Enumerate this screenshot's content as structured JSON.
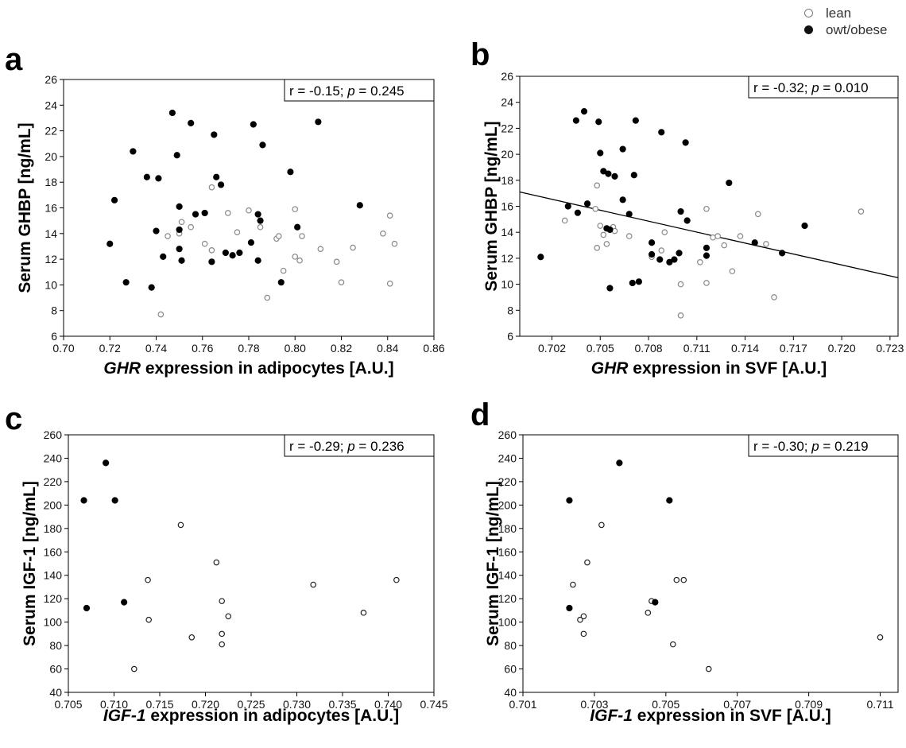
{
  "legend": {
    "lean_label": "lean",
    "obese_label": "owt/obese"
  },
  "colors": {
    "lean": "#888888",
    "lean_dark": "#222222",
    "obese": "#000000"
  },
  "chart_data": [
    {
      "type": "scatter",
      "panel": "a",
      "xlabel_italic": "GHR",
      "xlabel": " expression in adipocytes [A.U.]",
      "ylabel": "Serum GHBP [ng/mL]",
      "xlim": [
        0.7,
        0.86
      ],
      "ylim": [
        6,
        26
      ],
      "xticks": [
        "0.70",
        "0.72",
        "0.74",
        "0.76",
        "0.78",
        "0.80",
        "0.82",
        "0.84",
        "0.86"
      ],
      "yticks": [
        "6",
        "8",
        "10",
        "12",
        "14",
        "16",
        "18",
        "20",
        "22",
        "24",
        "26"
      ],
      "annotation": {
        "prefix": "r = -0.15; ",
        "p_label": "p",
        "suffix": " = 0.245"
      },
      "series": [
        {
          "name": "lean",
          "marker": "open",
          "color": "#888888",
          "points": [
            [
              0.742,
              7.7
            ],
            [
              0.745,
              13.8
            ],
            [
              0.751,
              14.9
            ],
            [
              0.75,
              14.0
            ],
            [
              0.755,
              14.5
            ],
            [
              0.761,
              13.2
            ],
            [
              0.764,
              12.7
            ],
            [
              0.764,
              17.6
            ],
            [
              0.771,
              15.6
            ],
            [
              0.775,
              14.1
            ],
            [
              0.78,
              15.8
            ],
            [
              0.785,
              14.5
            ],
            [
              0.788,
              9.0
            ],
            [
              0.792,
              13.6
            ],
            [
              0.793,
              13.8
            ],
            [
              0.795,
              11.1
            ],
            [
              0.8,
              15.9
            ],
            [
              0.8,
              12.2
            ],
            [
              0.802,
              11.9
            ],
            [
              0.803,
              13.8
            ],
            [
              0.811,
              12.8
            ],
            [
              0.818,
              11.8
            ],
            [
              0.82,
              10.2
            ],
            [
              0.825,
              12.9
            ],
            [
              0.838,
              14.0
            ],
            [
              0.841,
              15.4
            ],
            [
              0.841,
              10.1
            ],
            [
              0.843,
              13.2
            ]
          ]
        },
        {
          "name": "owt/obese",
          "marker": "filled",
          "color": "#000000",
          "points": [
            [
              0.72,
              13.2
            ],
            [
              0.722,
              16.6
            ],
            [
              0.727,
              10.2
            ],
            [
              0.73,
              20.4
            ],
            [
              0.736,
              18.4
            ],
            [
              0.738,
              9.8
            ],
            [
              0.74,
              14.2
            ],
            [
              0.741,
              18.3
            ],
            [
              0.743,
              12.2
            ],
            [
              0.747,
              23.4
            ],
            [
              0.749,
              20.1
            ],
            [
              0.75,
              16.1
            ],
            [
              0.75,
              14.3
            ],
            [
              0.75,
              12.8
            ],
            [
              0.751,
              11.9
            ],
            [
              0.755,
              22.6
            ],
            [
              0.757,
              15.5
            ],
            [
              0.761,
              15.6
            ],
            [
              0.764,
              11.8
            ],
            [
              0.765,
              21.7
            ],
            [
              0.766,
              18.4
            ],
            [
              0.768,
              17.8
            ],
            [
              0.77,
              12.5
            ],
            [
              0.773,
              12.3
            ],
            [
              0.776,
              12.5
            ],
            [
              0.781,
              13.3
            ],
            [
              0.782,
              22.5
            ],
            [
              0.784,
              11.9
            ],
            [
              0.784,
              15.5
            ],
            [
              0.785,
              15.0
            ],
            [
              0.786,
              20.9
            ],
            [
              0.794,
              10.2
            ],
            [
              0.798,
              18.8
            ],
            [
              0.801,
              14.5
            ],
            [
              0.81,
              22.7
            ],
            [
              0.828,
              16.2
            ]
          ]
        }
      ]
    },
    {
      "type": "scatter",
      "panel": "b",
      "xlabel_italic": "GHR",
      "xlabel": " expression in SVF [A.U.]",
      "ylabel": "Serum GHBP [ng/mL]",
      "xlim": [
        0.7,
        0.7235
      ],
      "ylim": [
        6,
        26
      ],
      "xticks": [
        "0.702",
        "0.705",
        "0.708",
        "0.711",
        "0.714",
        "0.717",
        "0.720",
        "0.723"
      ],
      "xtick_values": [
        0.702,
        0.705,
        0.708,
        0.711,
        0.714,
        0.717,
        0.72,
        0.723
      ],
      "yticks": [
        "6",
        "8",
        "10",
        "12",
        "14",
        "16",
        "18",
        "20",
        "22",
        "24",
        "26"
      ],
      "annotation": {
        "prefix": "r = -0.32; ",
        "p_label": "p",
        "suffix": " = 0.010"
      },
      "regression": {
        "x": [
          0.7,
          0.7235
        ],
        "y": [
          17.1,
          10.5
        ]
      },
      "series": [
        {
          "name": "lean",
          "marker": "open",
          "color": "#888888",
          "points": [
            [
              0.7028,
              14.9
            ],
            [
              0.7047,
              15.8
            ],
            [
              0.7048,
              17.6
            ],
            [
              0.7048,
              12.8
            ],
            [
              0.705,
              14.5
            ],
            [
              0.7052,
              13.8
            ],
            [
              0.7054,
              13.1
            ],
            [
              0.7058,
              14.4
            ],
            [
              0.7059,
              14.1
            ],
            [
              0.7068,
              13.7
            ],
            [
              0.7082,
              12.1
            ],
            [
              0.7088,
              12.6
            ],
            [
              0.709,
              14.0
            ],
            [
              0.71,
              10.0
            ],
            [
              0.71,
              7.6
            ],
            [
              0.7112,
              11.7
            ],
            [
              0.7116,
              15.8
            ],
            [
              0.7116,
              10.1
            ],
            [
              0.712,
              13.6
            ],
            [
              0.7123,
              13.7
            ],
            [
              0.7127,
              13.0
            ],
            [
              0.7132,
              11.0
            ],
            [
              0.7137,
              13.7
            ],
            [
              0.7148,
              15.4
            ],
            [
              0.7153,
              13.1
            ],
            [
              0.7158,
              9.0
            ],
            [
              0.7212,
              15.6
            ]
          ]
        },
        {
          "name": "owt/obese",
          "marker": "filled",
          "color": "#000000",
          "points": [
            [
              0.7013,
              12.1
            ],
            [
              0.703,
              16.0
            ],
            [
              0.7035,
              22.6
            ],
            [
              0.7036,
              15.5
            ],
            [
              0.704,
              23.3
            ],
            [
              0.7042,
              16.2
            ],
            [
              0.7049,
              22.5
            ],
            [
              0.705,
              20.1
            ],
            [
              0.7052,
              18.7
            ],
            [
              0.7054,
              14.3
            ],
            [
              0.7055,
              18.5
            ],
            [
              0.7056,
              9.7
            ],
            [
              0.7056,
              14.2
            ],
            [
              0.7059,
              18.3
            ],
            [
              0.7064,
              16.5
            ],
            [
              0.7064,
              20.4
            ],
            [
              0.7068,
              15.4
            ],
            [
              0.707,
              10.1
            ],
            [
              0.7071,
              18.4
            ],
            [
              0.7072,
              22.6
            ],
            [
              0.7074,
              10.2
            ],
            [
              0.7082,
              13.2
            ],
            [
              0.7082,
              12.3
            ],
            [
              0.7087,
              11.9
            ],
            [
              0.7088,
              21.7
            ],
            [
              0.7093,
              11.7
            ],
            [
              0.7096,
              11.9
            ],
            [
              0.7099,
              12.4
            ],
            [
              0.71,
              15.6
            ],
            [
              0.7103,
              20.9
            ],
            [
              0.7104,
              14.9
            ],
            [
              0.7116,
              12.8
            ],
            [
              0.7116,
              12.2
            ],
            [
              0.713,
              17.8
            ],
            [
              0.7146,
              13.2
            ],
            [
              0.7163,
              12.4
            ],
            [
              0.7177,
              14.5
            ]
          ]
        }
      ]
    },
    {
      "type": "scatter",
      "panel": "c",
      "xlabel_italic": "IGF-1",
      "xlabel": " expression in adipocytes [A.U.]",
      "ylabel": "Serum IGF-1 [ng/mL]",
      "xlim": [
        0.705,
        0.745
      ],
      "ylim": [
        40,
        260
      ],
      "xticks": [
        "0.705",
        "0.710",
        "0.715",
        "0.720",
        "0.725",
        "0.730",
        "0.735",
        "0.740",
        "0.745"
      ],
      "yticks": [
        "40",
        "60",
        "80",
        "100",
        "120",
        "140",
        "160",
        "180",
        "200",
        "220",
        "240",
        "260"
      ],
      "annotation": {
        "prefix": "r = -0.29; ",
        "p_label": "p",
        "suffix": " = 0.236"
      },
      "series": [
        {
          "name": "lean",
          "marker": "open",
          "color": "#222222",
          "points": [
            [
              0.7122,
              60
            ],
            [
              0.7137,
              136
            ],
            [
              0.7138,
              102
            ],
            [
              0.7173,
              183
            ],
            [
              0.7185,
              87
            ],
            [
              0.7212,
              151
            ],
            [
              0.7218,
              118
            ],
            [
              0.7218,
              90
            ],
            [
              0.7218,
              81
            ],
            [
              0.7225,
              105
            ],
            [
              0.7318,
              132
            ],
            [
              0.7373,
              108
            ],
            [
              0.7409,
              136
            ]
          ]
        },
        {
          "name": "owt/obese",
          "marker": "filled",
          "color": "#000000",
          "points": [
            [
              0.7067,
              204
            ],
            [
              0.707,
              112
            ],
            [
              0.7091,
              236
            ],
            [
              0.7101,
              204
            ],
            [
              0.7111,
              117
            ]
          ]
        }
      ]
    },
    {
      "type": "scatter",
      "panel": "d",
      "xlabel_italic": "IGF-1",
      "xlabel": " expression in SVF [A.U.]",
      "ylabel": "Serum IGF-1 [ng/mL]",
      "xlim": [
        0.701,
        0.7115
      ],
      "ylim": [
        40,
        260
      ],
      "xticks": [
        "0.701",
        "0.703",
        "0.705",
        "0.707",
        "0.709",
        "0.711"
      ],
      "xtick_values": [
        0.701,
        0.703,
        0.705,
        0.707,
        0.709,
        0.711
      ],
      "yticks": [
        "40",
        "60",
        "80",
        "100",
        "120",
        "140",
        "160",
        "180",
        "200",
        "220",
        "240",
        "260"
      ],
      "annotation": {
        "prefix": "r = -0.30; ",
        "p_label": "p",
        "suffix": " = 0.219"
      },
      "series": [
        {
          "name": "lean",
          "marker": "open",
          "color": "#222222",
          "points": [
            [
              0.7024,
              132
            ],
            [
              0.7026,
              102
            ],
            [
              0.7027,
              105
            ],
            [
              0.7027,
              90
            ],
            [
              0.7028,
              151
            ],
            [
              0.7032,
              183
            ],
            [
              0.7045,
              108
            ],
            [
              0.7046,
              118
            ],
            [
              0.7052,
              81
            ],
            [
              0.7053,
              136
            ],
            [
              0.7055,
              136
            ],
            [
              0.7062,
              60
            ],
            [
              0.711,
              87
            ]
          ]
        },
        {
          "name": "owt/obese",
          "marker": "filled",
          "color": "#000000",
          "points": [
            [
              0.7023,
              112
            ],
            [
              0.7023,
              204
            ],
            [
              0.7037,
              236
            ],
            [
              0.7047,
              117
            ],
            [
              0.7051,
              204
            ]
          ]
        }
      ]
    }
  ]
}
